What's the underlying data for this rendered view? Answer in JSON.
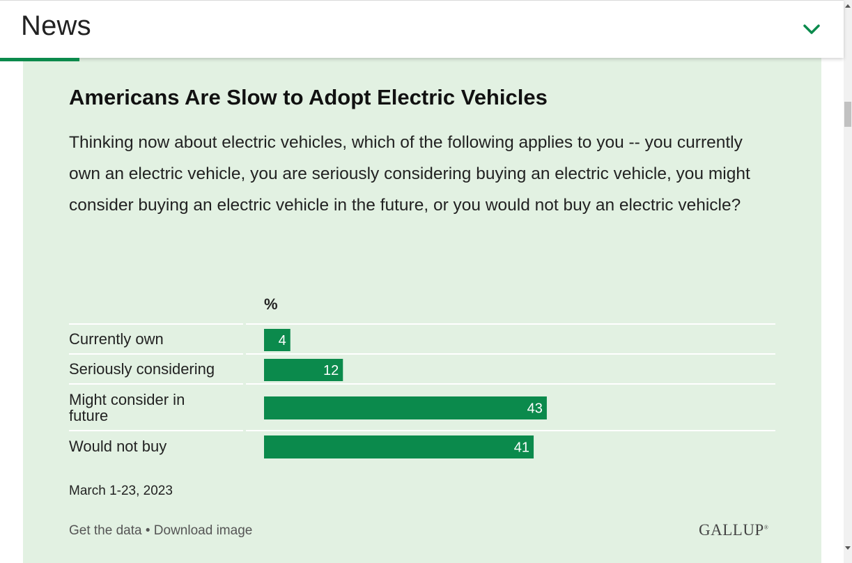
{
  "header": {
    "title": "News"
  },
  "chart_data": {
    "type": "bar",
    "orientation": "horizontal",
    "title": "Americans Are Slow to Adopt Electric Vehicles",
    "question": "Thinking now about electric vehicles, which of the following applies to you -- you currently own an electric vehicle, you are seriously considering buying an electric vehicle, you might consider buying an electric vehicle in the future, or you would not buy an electric vehicle?",
    "unit_label": "%",
    "categories": [
      "Currently own",
      "Seriously considering",
      "Might consider in future",
      "Would not buy"
    ],
    "values": [
      4,
      12,
      43,
      41
    ],
    "xlim": [
      0,
      100
    ],
    "bar_color": "#0b8a4c",
    "data_labels": true,
    "date": "March 1-23, 2023"
  },
  "footer": {
    "get_data": "Get the data",
    "separator": "•",
    "download": "Download image",
    "logo": "GALLUP"
  },
  "colors": {
    "accent": "#0b8a4c",
    "panel_bg": "#e2f1e2"
  }
}
